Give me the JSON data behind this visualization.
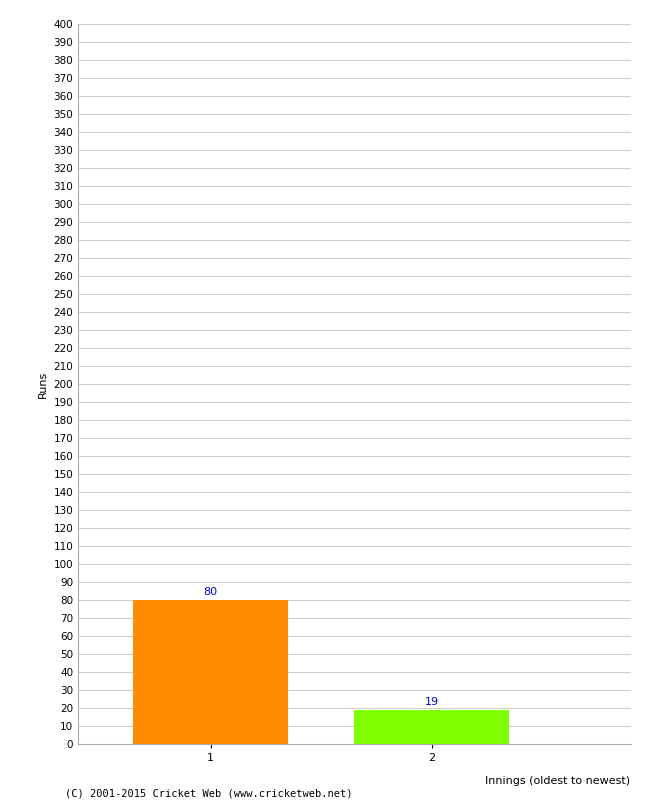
{
  "categories": [
    "1",
    "2"
  ],
  "values": [
    80,
    19
  ],
  "bar_colors": [
    "#ff8c00",
    "#7fff00"
  ],
  "xlabel": "Innings (oldest to newest)",
  "ylabel": "Runs",
  "ylim": [
    0,
    400
  ],
  "ytick_step": 10,
  "background_color": "#ffffff",
  "grid_color": "#cccccc",
  "label_color": "#0000cc",
  "footer": "(C) 2001-2015 Cricket Web (www.cricketweb.net)",
  "fig_width": 6.5,
  "fig_height": 8.0,
  "dpi": 100
}
